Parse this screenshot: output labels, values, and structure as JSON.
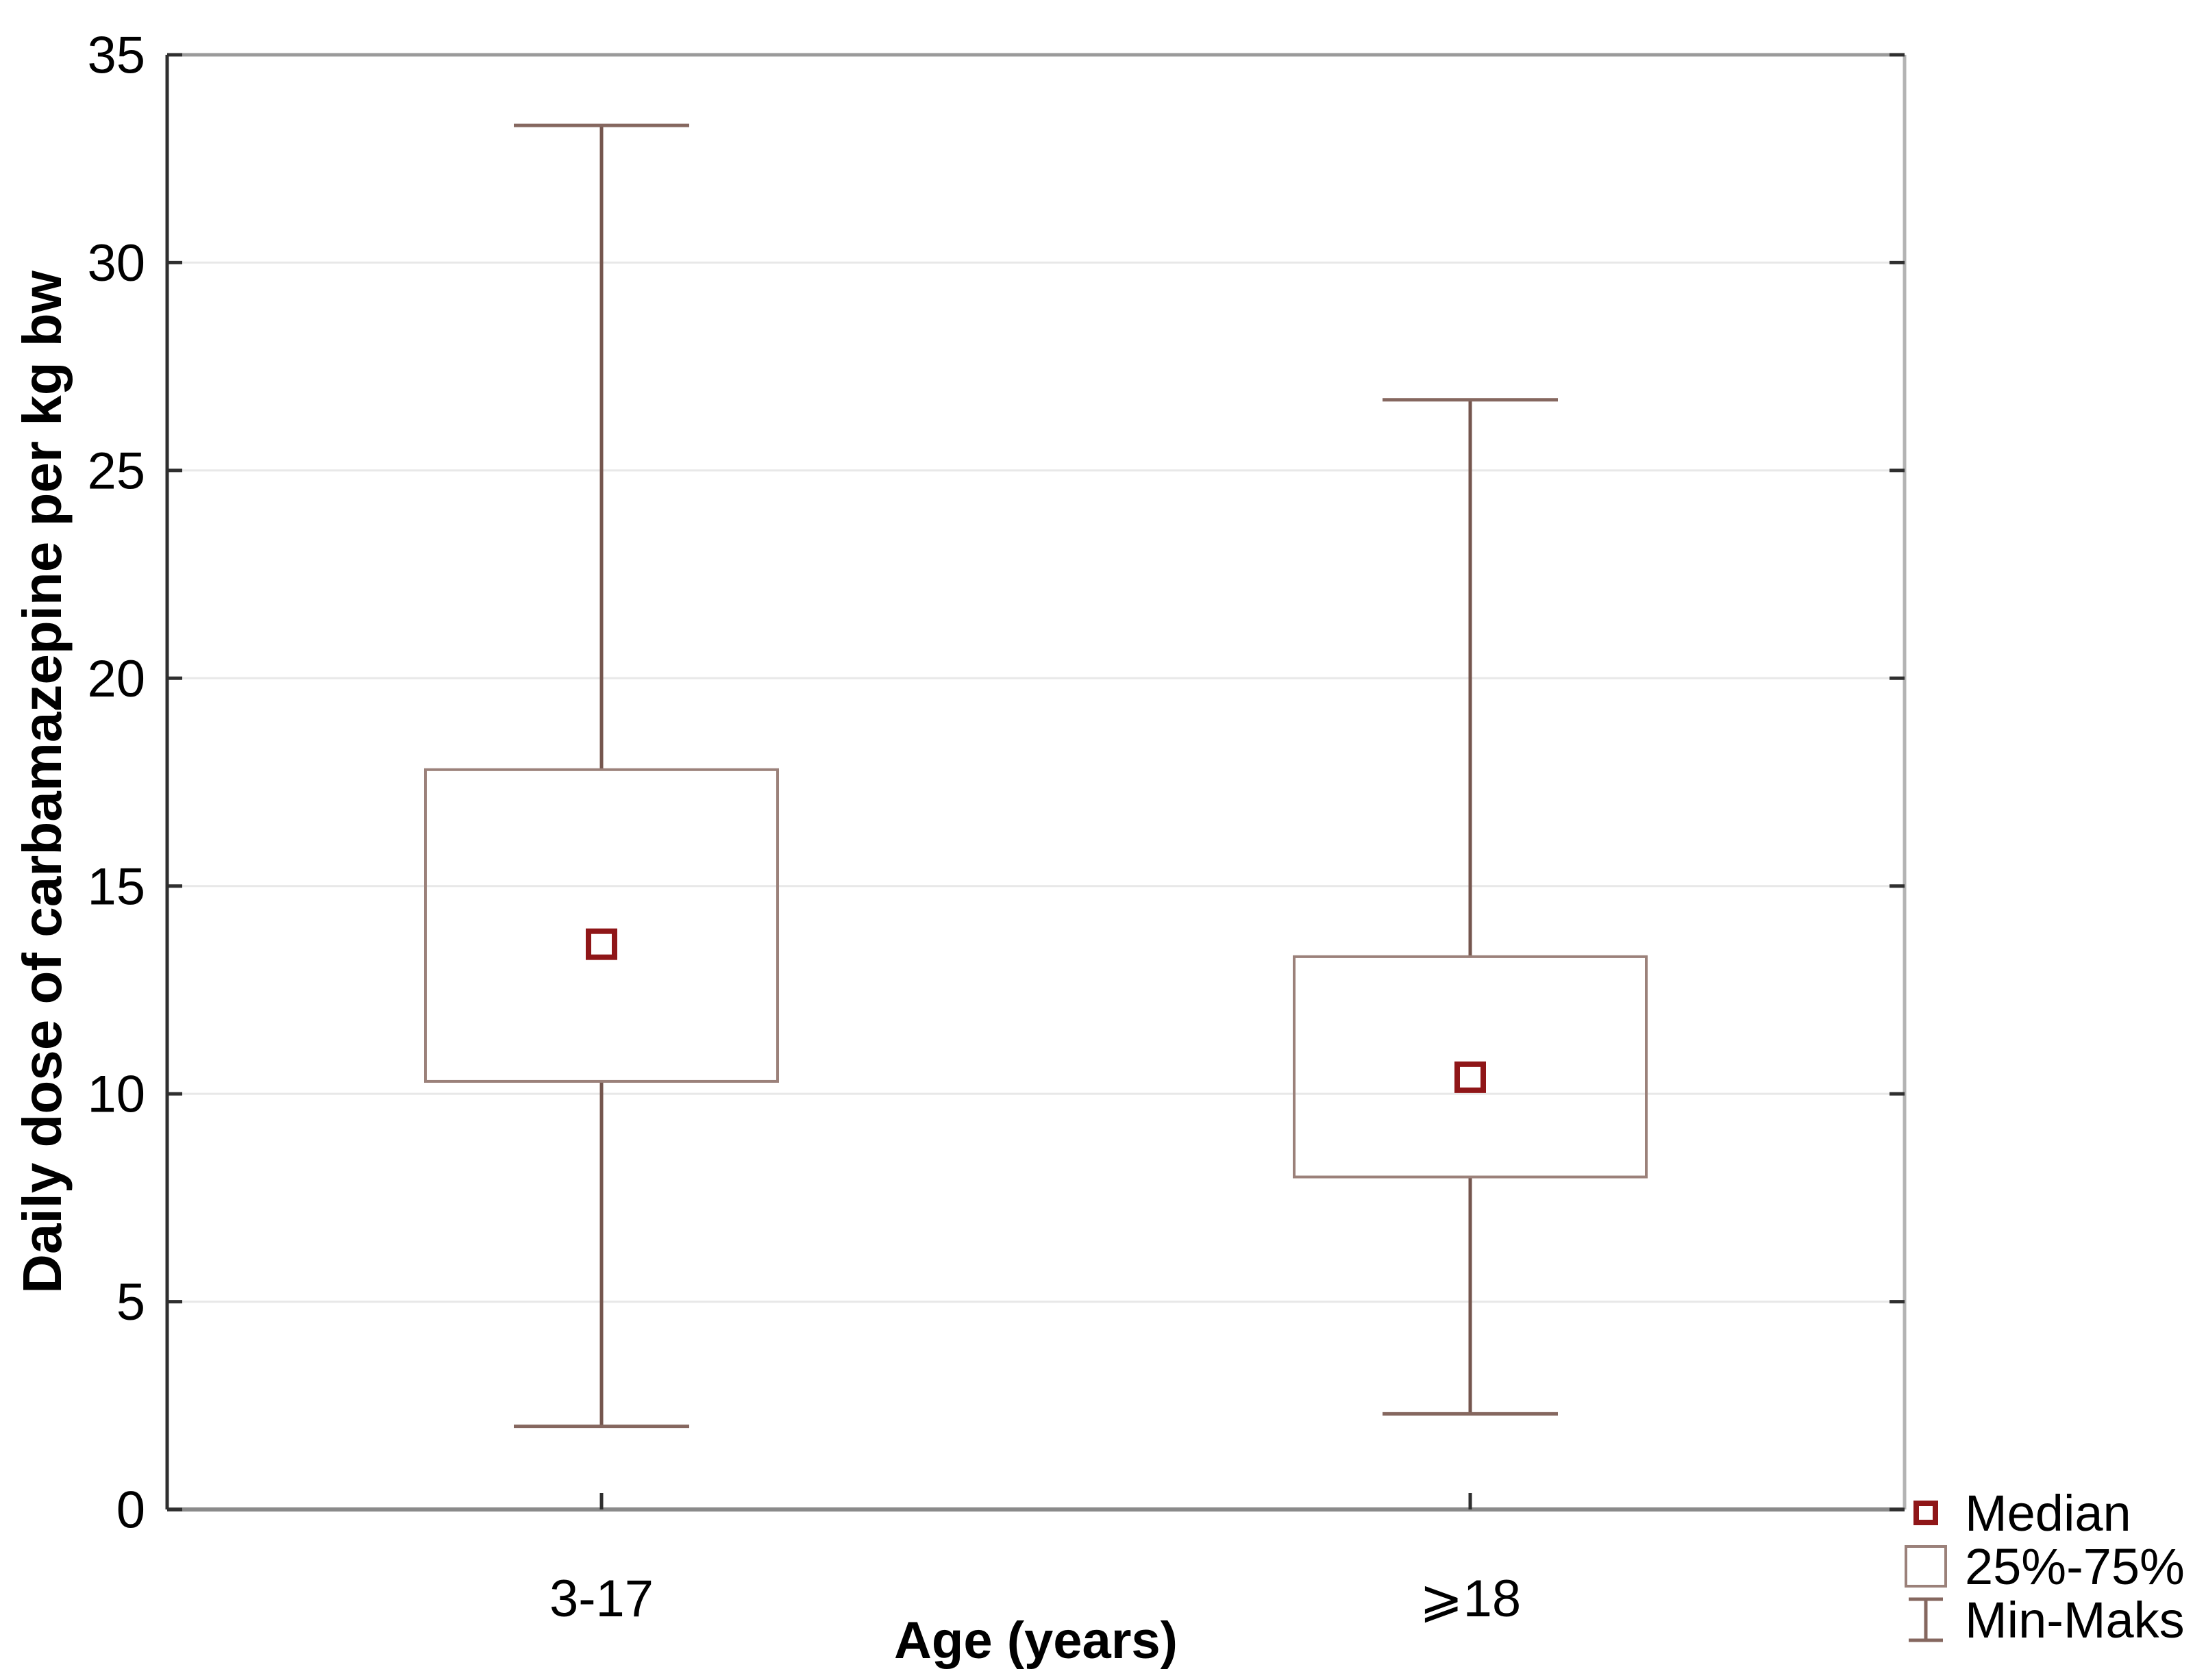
{
  "figure": {
    "xlabel": "Age (years)",
    "ylabel": "Daily dose of carbamazepine per kg bw"
  },
  "legend": {
    "items": [
      {
        "id": "median",
        "label": "Median"
      },
      {
        "id": "iqr-box",
        "label": "25%-75%"
      },
      {
        "id": "min-max",
        "label": "Min-Maks"
      }
    ]
  },
  "chart_data": {
    "type": "boxplot",
    "title": "",
    "xlabel": "Age (years)",
    "ylabel": "Daily dose of carbamazepine per kg bw",
    "categories": [
      "3-17",
      "⩾18"
    ],
    "series": [
      {
        "category": "3-17",
        "min": 2.0,
        "q1": 10.3,
        "median": 13.6,
        "q3": 17.8,
        "max": 33.3
      },
      {
        "category": "⩾18",
        "min": 2.3,
        "q1": 8.0,
        "median": 10.4,
        "q3": 13.3,
        "max": 26.7
      }
    ],
    "ylim": [
      0,
      35
    ],
    "yticks": [
      0,
      5,
      10,
      15,
      20,
      25,
      30,
      35
    ],
    "grid": true,
    "legend_position": "bottom-right",
    "legend_labels": [
      "Median",
      "25%-75%",
      "Min-Maks"
    ],
    "colors": {
      "median_marker": "#8f1618",
      "box_border": "#9b817a",
      "whisker": "#75564e",
      "whisker_cap": "#85675f",
      "gridline": "#e8e8e8",
      "axis_left": "#2f2f2f",
      "axis_bottom": "#8a8a8a",
      "axis_top": "#9a9a9a",
      "axis_right": "#b3b3b3",
      "text": "#000000"
    }
  }
}
